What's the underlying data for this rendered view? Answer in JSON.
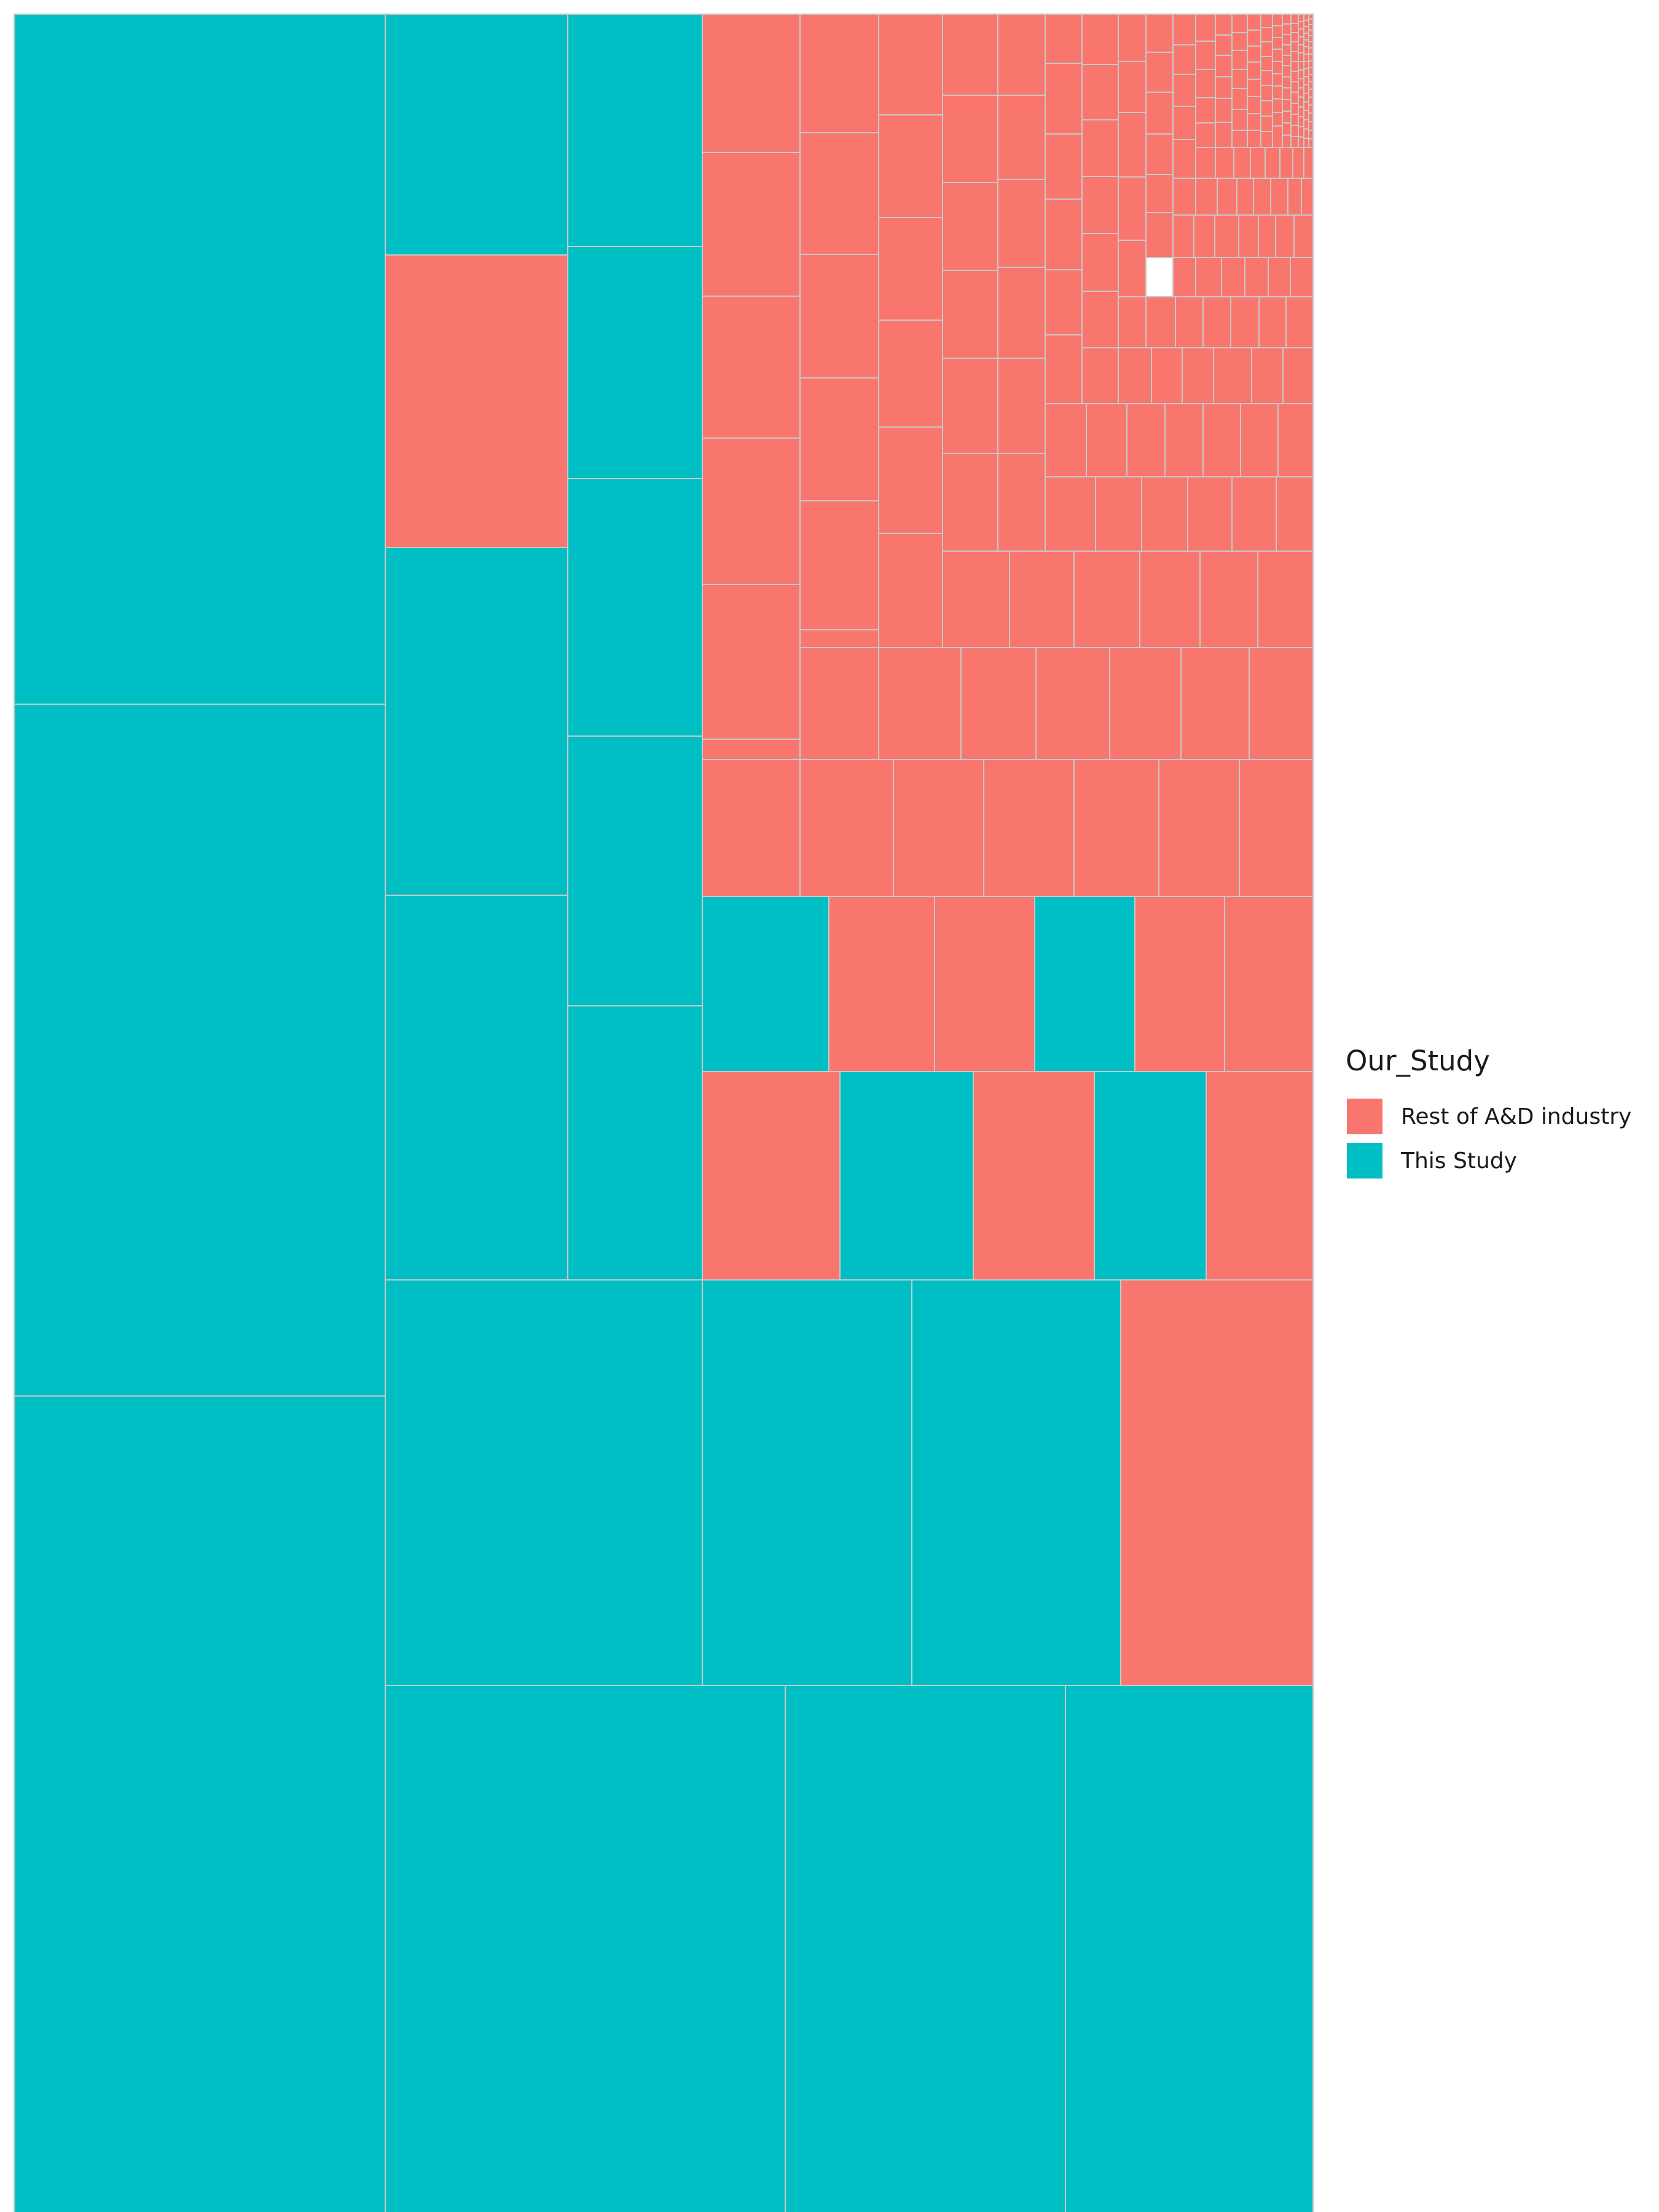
{
  "chart_data": {
    "type": "treemap",
    "legend": {
      "title": "Our_Study",
      "position": "right",
      "items": [
        {
          "label": "Rest of A&D industry",
          "color": "#F8766D"
        },
        {
          "label": "This Study",
          "color": "#00BFC4"
        }
      ]
    },
    "tile_border_color": "#c8c8c8",
    "tiles_this_study_major": [
      {
        "group": "This Study",
        "relative_area": 1253
      },
      {
        "group": "This Study",
        "relative_area": 1130
      },
      {
        "group": "This Study",
        "relative_area": 1009
      },
      {
        "group": "This Study",
        "relative_area": 583
      },
      {
        "group": "This Study",
        "relative_area": 456
      },
      {
        "group": "This Study",
        "relative_area": 396
      },
      {
        "group": "This Study",
        "relative_area": 305
      },
      {
        "group": "This Study",
        "relative_area": 285
      },
      {
        "group": "This Study",
        "relative_area": 230
      },
      {
        "group": "This Study",
        "relative_area": 213
      },
      {
        "group": "This Study",
        "relative_area": 193
      },
      {
        "group": "This Study",
        "relative_area": 179
      },
      {
        "group": "This Study",
        "relative_area": 165
      },
      {
        "group": "This Study",
        "relative_area": 162
      },
      {
        "group": "This Study",
        "relative_area": 150
      },
      {
        "group": "This Study",
        "relative_area": 59
      },
      {
        "group": "This Study",
        "relative_area": 48
      },
      {
        "group": "This Study",
        "relative_area": 47
      },
      {
        "group": "This Study",
        "relative_area": 41
      }
    ],
    "tiles_rest_major": [
      {
        "group": "Rest of A&D industry",
        "relative_area": 172
      },
      {
        "group": "Rest of A&D industry",
        "relative_area": 147
      },
      {
        "group": "Rest of A&D industry",
        "relative_area": 51
      },
      {
        "group": "Rest of A&D industry",
        "relative_area": 51
      },
      {
        "group": "Rest of A&D industry",
        "relative_area": 49
      },
      {
        "group": "Rest of A&D industry",
        "relative_area": 48
      },
      {
        "group": "Rest of A&D industry",
        "relative_area": 45
      },
      {
        "group": "Rest of A&D industry",
        "relative_area": 44
      }
    ],
    "rest_small_tiles_approx_count": 160
  }
}
